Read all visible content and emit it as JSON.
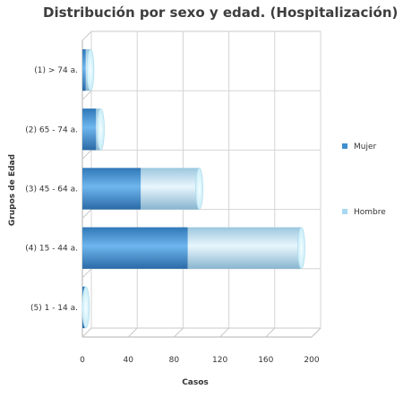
{
  "chart_data": {
    "type": "bar",
    "orientation": "horizontal",
    "stacked": true,
    "title": "Distribución por sexo y edad. (Hospitalización)",
    "xlabel": "Casos",
    "ylabel": "Grupos de Edad",
    "categories": [
      "(1) > 74 a.",
      "(2) 65 - 74 a.",
      "(3) 45 - 64 a.",
      "(4) 15 - 44 a.",
      "(5) 1 - 14 a."
    ],
    "series": [
      {
        "name": "Mujer",
        "values": [
          3,
          12,
          51,
          92,
          2
        ],
        "color": "#3f8fcf"
      },
      {
        "name": "Hombre",
        "values": [
          4,
          4,
          51,
          99,
          1
        ],
        "color": "#a9d8f0"
      }
    ],
    "xlim": [
      0,
      200
    ],
    "xticks": [
      0,
      40,
      80,
      120,
      160,
      200
    ],
    "grid": true,
    "legend_position": "right"
  }
}
